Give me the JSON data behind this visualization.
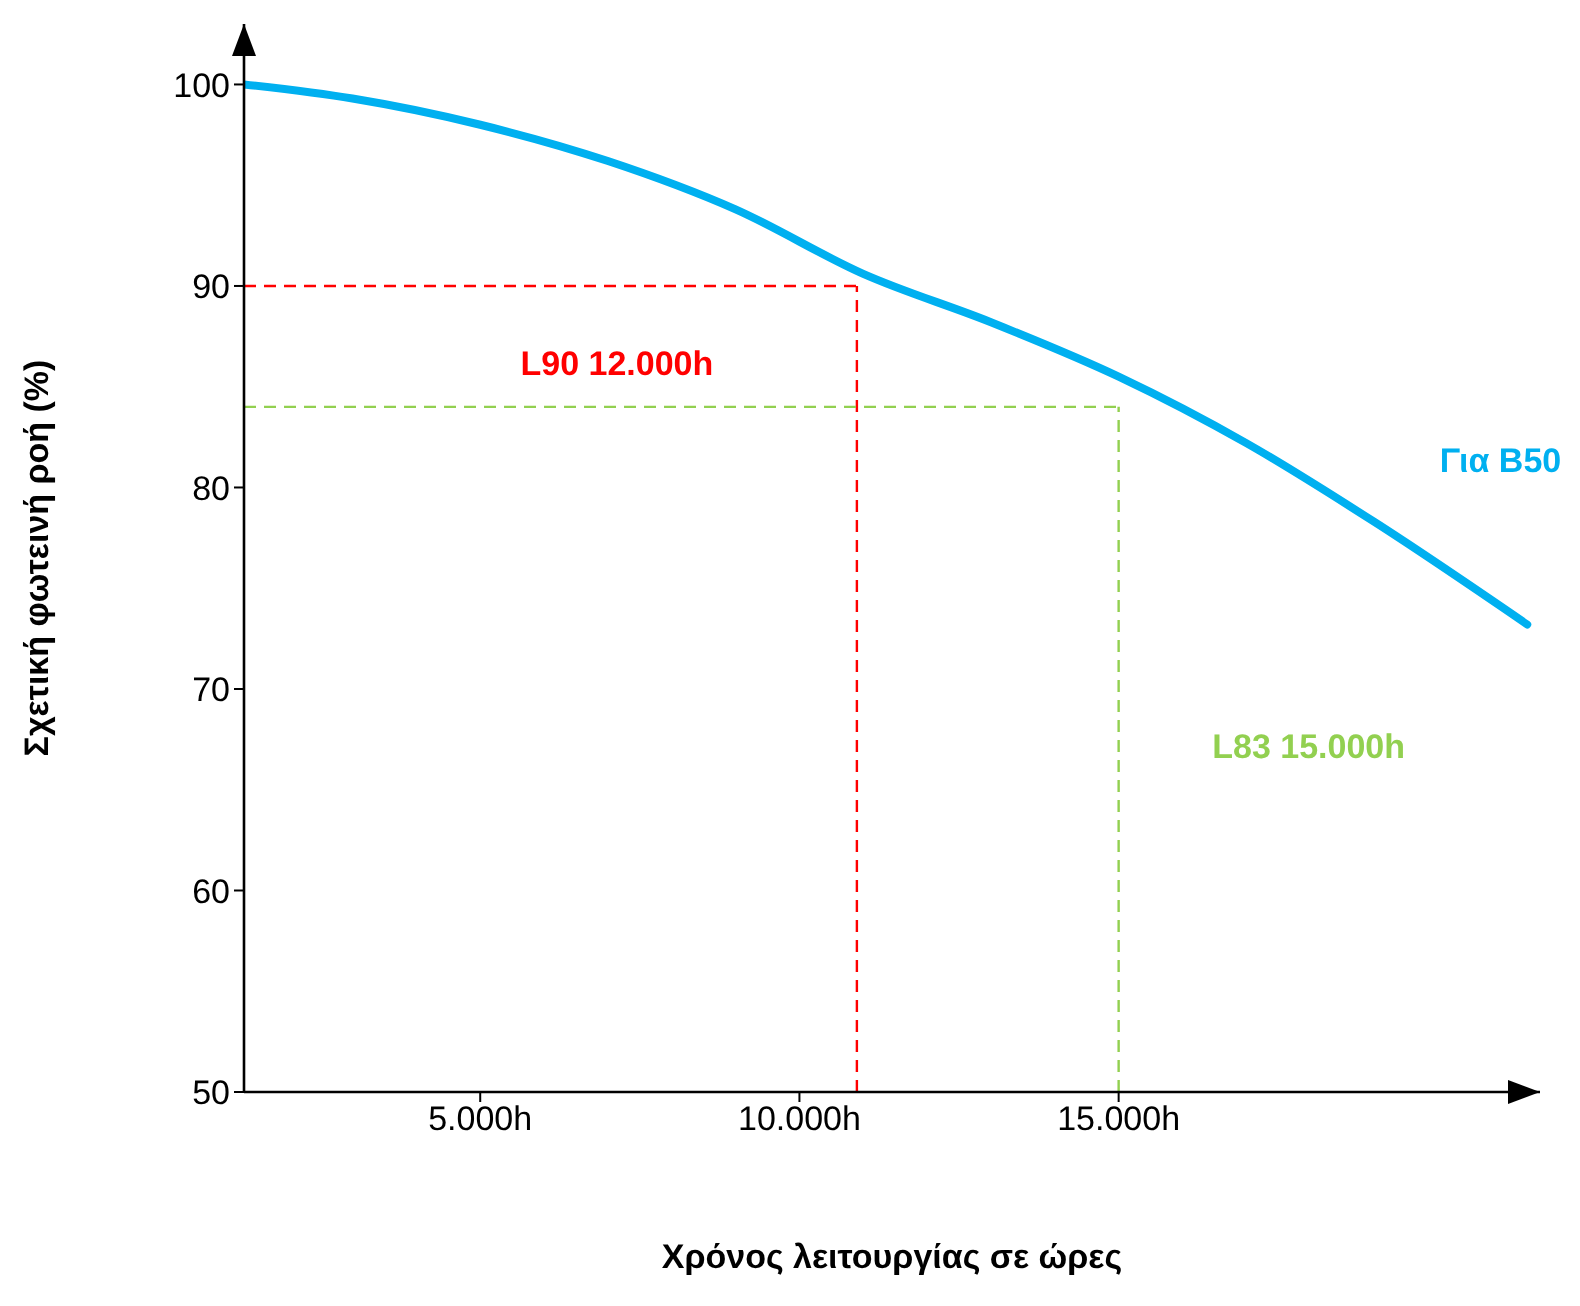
{
  "chart_data": {
    "type": "line",
    "xlabel": "Χρόνος λειτουργίας σε ώρες",
    "ylabel": "Σχετική φωτεινή ροή (%)",
    "x": [
      1300,
      3000,
      5000,
      7000,
      9000,
      11000,
      13000,
      15000,
      17000,
      19000,
      21400
    ],
    "series": [
      {
        "name": "Για B50",
        "color": "#00b0f0",
        "values": [
          100,
          99.3,
          98.0,
          96.2,
          93.8,
          90.6,
          88.2,
          85.5,
          82.2,
          78.3,
          73.2
        ]
      }
    ],
    "xlim": [
      1300,
      21600
    ],
    "ylim": [
      50,
      103
    ],
    "xticks": [
      {
        "value": 5000,
        "label": "5.000h"
      },
      {
        "value": 10000,
        "label": "10.000h"
      },
      {
        "value": 15000,
        "label": "15.000h"
      }
    ],
    "yticks": [
      50,
      60,
      70,
      80,
      90,
      100
    ],
    "ref_lines": [
      {
        "axis": "x",
        "value": 10900,
        "color": "#ff0000",
        "line_style": "dashed",
        "label": "L90 12.000h"
      },
      {
        "axis": "y",
        "value": 90,
        "color": "#ff0000",
        "line_style": "dashed"
      },
      {
        "axis": "x",
        "value": 15000,
        "color": "#92d050",
        "line_style": "dashed",
        "label": "L83 15.000h"
      },
      {
        "axis": "y",
        "value": 84,
        "color": "#92d050",
        "line_style": "dashed"
      }
    ],
    "grid": false,
    "legend": false,
    "marker": "none",
    "line_style": "solid"
  }
}
